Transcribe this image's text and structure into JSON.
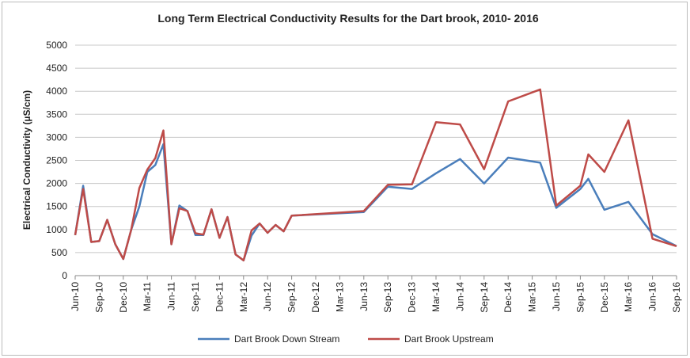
{
  "chart_data": {
    "type": "line",
    "title": "Long Term Electrical Conductivity Results for the Dart brook, 2010- 2016",
    "y_label": "Electrical Conductivity (µS/cm)",
    "x": [
      "2010-06",
      "2010-07",
      "2010-08",
      "2010-09",
      "2010-10",
      "2010-11",
      "2010-12",
      "2011-01",
      "2011-02",
      "2011-03",
      "2011-04",
      "2011-05",
      "2011-06",
      "2011-07",
      "2011-08",
      "2011-09",
      "2011-10",
      "2011-11",
      "2011-12",
      "2012-01",
      "2012-02",
      "2012-03",
      "2012-04",
      "2012-05",
      "2012-06",
      "2012-07",
      "2012-08",
      "2012-09",
      "2013-06",
      "2013-09",
      "2013-12",
      "2014-03",
      "2014-06",
      "2014-09",
      "2014-12",
      "2015-04",
      "2015-06",
      "2015-09",
      "2015-10",
      "2015-12",
      "2016-03",
      "2016-06",
      "2016-09"
    ],
    "series": [
      {
        "name": "Dart Brook Down Stream",
        "color": "#4a7ebb",
        "values": [
          880,
          1950,
          730,
          750,
          1210,
          680,
          360,
          1000,
          1500,
          2250,
          2400,
          2850,
          680,
          1520,
          1400,
          880,
          880,
          1440,
          820,
          1270,
          460,
          330,
          870,
          1130,
          930,
          1100,
          960,
          1300,
          1380,
          1930,
          1880,
          2220,
          2530,
          2000,
          2560,
          2450,
          1470,
          1880,
          2100,
          1430,
          1600,
          900,
          640
        ]
      },
      {
        "name": "Dart Brook Upstream",
        "color": "#be4b48",
        "values": [
          880,
          1880,
          730,
          750,
          1210,
          680,
          360,
          1000,
          1900,
          2300,
          2550,
          3150,
          680,
          1460,
          1400,
          920,
          890,
          1440,
          820,
          1270,
          460,
          330,
          980,
          1130,
          930,
          1100,
          960,
          1300,
          1400,
          1970,
          1980,
          3330,
          3280,
          2310,
          3780,
          4040,
          1520,
          1950,
          2630,
          2250,
          3370,
          800,
          640
        ]
      }
    ],
    "ylim": [
      0,
      5000
    ],
    "yticks": [
      0,
      500,
      1000,
      1500,
      2000,
      2500,
      3000,
      3500,
      4000,
      4500,
      5000
    ],
    "xlim": [
      "2010-06",
      "2016-09"
    ],
    "xticks": [
      {
        "value": "2010-06",
        "label": "Jun-10"
      },
      {
        "value": "2010-09",
        "label": "Sep-10"
      },
      {
        "value": "2010-12",
        "label": "Dec-10"
      },
      {
        "value": "2011-03",
        "label": "Mar-11"
      },
      {
        "value": "2011-06",
        "label": "Jun-11"
      },
      {
        "value": "2011-09",
        "label": "Sep-11"
      },
      {
        "value": "2011-12",
        "label": "Dec-11"
      },
      {
        "value": "2012-03",
        "label": "Mar-12"
      },
      {
        "value": "2012-06",
        "label": "Jun-12"
      },
      {
        "value": "2012-09",
        "label": "Sep-12"
      },
      {
        "value": "2012-12",
        "label": "Dec-12"
      },
      {
        "value": "2013-03",
        "label": "Mar-13"
      },
      {
        "value": "2013-06",
        "label": "Jun-13"
      },
      {
        "value": "2013-09",
        "label": "Sep-13"
      },
      {
        "value": "2013-12",
        "label": "Dec-13"
      },
      {
        "value": "2014-03",
        "label": "Mar-14"
      },
      {
        "value": "2014-06",
        "label": "Jun-14"
      },
      {
        "value": "2014-09",
        "label": "Sep-14"
      },
      {
        "value": "2014-12",
        "label": "Dec-14"
      },
      {
        "value": "2015-03",
        "label": "Mar-15"
      },
      {
        "value": "2015-06",
        "label": "Jun-15"
      },
      {
        "value": "2015-09",
        "label": "Sep-15"
      },
      {
        "value": "2015-12",
        "label": "Dec-15"
      },
      {
        "value": "2016-03",
        "label": "Mar-16"
      },
      {
        "value": "2016-06",
        "label": "Jun-16"
      },
      {
        "value": "2016-09",
        "label": "Sep-16"
      }
    ],
    "grid": true
  }
}
